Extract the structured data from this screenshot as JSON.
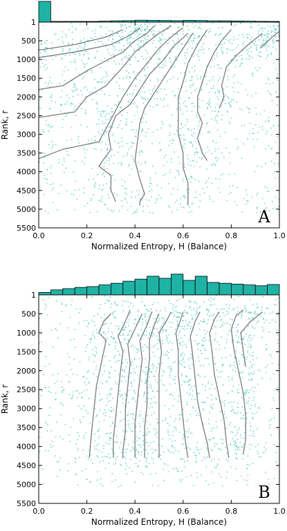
{
  "chart_data": [
    {
      "type": "scatter",
      "panel_label": "A",
      "xlabel": "Normalized Entropy, H (Balance)",
      "ylabel": "Rank, r",
      "xlim": [
        0.0,
        1.0
      ],
      "ylim": [
        5500,
        1
      ],
      "x_ticks": [
        "0.0",
        "0.2",
        "0.4",
        "0.6",
        "0.8",
        "1.0"
      ],
      "y_ticks": [
        "1",
        "500",
        "1000",
        "1500",
        "2000",
        "2500",
        "3000",
        "3500",
        "4000",
        "4500",
        "5000",
        "5500"
      ],
      "histogram_top": {
        "bin_width": 0.05,
        "counts": [
          650,
          10,
          8,
          12,
          20,
          30,
          40,
          45,
          60,
          55,
          50,
          45,
          55,
          50,
          40,
          40,
          35,
          30,
          25,
          20
        ]
      },
      "scatter_colour": "#3cc6b8",
      "curve_colour": "#7a7a7a",
      "contour_lines": [
        {
          "points": [
            [
              0.35,
              200
            ],
            [
              0.28,
              400
            ],
            [
              0.15,
              600
            ],
            [
              0.0,
              750
            ]
          ]
        },
        {
          "points": [
            [
              0.42,
              150
            ],
            [
              0.38,
              350
            ],
            [
              0.3,
              600
            ],
            [
              0.15,
              800
            ],
            [
              0.0,
              950
            ]
          ]
        },
        {
          "points": [
            [
              0.48,
              100
            ],
            [
              0.45,
              300
            ],
            [
              0.4,
              500
            ],
            [
              0.35,
              800
            ],
            [
              0.2,
              1300
            ],
            [
              0.1,
              1700
            ],
            [
              0.0,
              1800
            ]
          ]
        },
        {
          "points": [
            [
              0.55,
              100
            ],
            [
              0.5,
              300
            ],
            [
              0.45,
              550
            ],
            [
              0.4,
              800
            ],
            [
              0.35,
              1200
            ],
            [
              0.28,
              1700
            ],
            [
              0.2,
              2000
            ],
            [
              0.15,
              2400
            ],
            [
              0.0,
              2550
            ]
          ]
        },
        {
          "points": [
            [
              0.6,
              150
            ],
            [
              0.55,
              400
            ],
            [
              0.5,
              700
            ],
            [
              0.45,
              1100
            ],
            [
              0.4,
              1500
            ],
            [
              0.35,
              2000
            ],
            [
              0.3,
              2600
            ],
            [
              0.25,
              3200
            ],
            [
              0.1,
              3400
            ],
            [
              0.0,
              3650
            ]
          ]
        },
        {
          "points": [
            [
              0.62,
              300
            ],
            [
              0.56,
              650
            ],
            [
              0.52,
              1000
            ],
            [
              0.46,
              1400
            ],
            [
              0.42,
              1800
            ],
            [
              0.38,
              2200
            ],
            [
              0.32,
              2500
            ],
            [
              0.29,
              3000
            ],
            [
              0.3,
              3400
            ],
            [
              0.25,
              3850
            ],
            [
              0.3,
              4100
            ],
            [
              0.3,
              4500
            ],
            [
              0.32,
              4800
            ]
          ]
        },
        {
          "points": [
            [
              0.64,
              300
            ],
            [
              0.6,
              700
            ],
            [
              0.56,
              1100
            ],
            [
              0.52,
              1500
            ],
            [
              0.48,
              1900
            ],
            [
              0.44,
              2300
            ],
            [
              0.42,
              2700
            ],
            [
              0.41,
              3200
            ],
            [
              0.4,
              3700
            ],
            [
              0.42,
              4200
            ],
            [
              0.44,
              4600
            ],
            [
              0.42,
              4800
            ],
            [
              0.42,
              4900
            ]
          ]
        },
        {
          "points": [
            [
              0.7,
              200
            ],
            [
              0.66,
              600
            ],
            [
              0.62,
              1100
            ],
            [
              0.6,
              1600
            ],
            [
              0.58,
              2000
            ],
            [
              0.58,
              2500
            ],
            [
              0.58,
              3000
            ],
            [
              0.6,
              3500
            ],
            [
              0.6,
              3900
            ],
            [
              0.62,
              4300
            ],
            [
              0.62,
              4700
            ],
            [
              0.62,
              4900
            ]
          ]
        },
        {
          "points": [
            [
              0.8,
              200
            ],
            [
              0.76,
              500
            ],
            [
              0.73,
              800
            ],
            [
              0.7,
              1200
            ],
            [
              0.68,
              1600
            ],
            [
              0.66,
              2000
            ],
            [
              0.66,
              2400
            ],
            [
              0.68,
              2700
            ],
            [
              0.66,
              3100
            ],
            [
              0.68,
              3500
            ],
            [
              0.7,
              3700
            ]
          ]
        },
        {
          "points": [
            [
              0.93,
              300
            ],
            [
              0.88,
              550
            ],
            [
              0.82,
              900
            ],
            [
              0.78,
              1200
            ],
            [
              0.76,
              1700
            ],
            [
              0.77,
              2000
            ],
            [
              0.75,
              2300
            ]
          ]
        },
        {
          "points": [
            [
              1.0,
              250
            ],
            [
              0.97,
              400
            ],
            [
              0.92,
              700
            ]
          ]
        }
      ]
    },
    {
      "type": "scatter",
      "panel_label": "B",
      "xlabel": "Normalized Entropy, H (Balance)",
      "ylabel": "Rank, r",
      "xlim": [
        0.0,
        1.0
      ],
      "ylim": [
        5500,
        1
      ],
      "x_ticks": [
        "0.0",
        "0.2",
        "0.4",
        "0.6",
        "0.8",
        "1.0"
      ],
      "y_ticks": [
        "1",
        "500",
        "1000",
        "1500",
        "2000",
        "2500",
        "3000",
        "3500",
        "4000",
        "4500",
        "5000",
        "5500"
      ],
      "histogram_top": {
        "bin_width": 0.05,
        "counts": [
          6,
          12,
          15,
          18,
          20,
          24,
          28,
          33,
          38,
          45,
          40,
          50,
          35,
          45,
          30,
          28,
          26,
          24,
          22,
          25
        ]
      },
      "scatter_colour": "#3cc6b8",
      "curve_colour": "#7a7a7a",
      "contour_lines": [
        {
          "points": [
            [
              0.25,
              1000
            ],
            [
              0.27,
              700
            ],
            [
              0.3,
              500
            ],
            [
              0.28,
              1200
            ],
            [
              0.26,
              1800
            ],
            [
              0.24,
              2400
            ],
            [
              0.23,
              3000
            ],
            [
              0.22,
              3600
            ],
            [
              0.21,
              4300
            ]
          ]
        },
        {
          "points": [
            [
              0.33,
              1100
            ],
            [
              0.36,
              700
            ],
            [
              0.38,
              400
            ],
            [
              0.35,
              1500
            ],
            [
              0.34,
              2000
            ],
            [
              0.33,
              2600
            ],
            [
              0.32,
              3200
            ],
            [
              0.31,
              3800
            ],
            [
              0.31,
              4300
            ]
          ]
        },
        {
          "points": [
            [
              0.37,
              1300
            ],
            [
              0.4,
              900
            ],
            [
              0.43,
              500
            ],
            [
              0.38,
              1800
            ],
            [
              0.37,
              2400
            ],
            [
              0.36,
              3000
            ],
            [
              0.36,
              3600
            ],
            [
              0.35,
              4100
            ],
            [
              0.35,
              4300
            ]
          ]
        },
        {
          "points": [
            [
              0.42,
              1200
            ],
            [
              0.45,
              800
            ],
            [
              0.47,
              450
            ],
            [
              0.43,
              1700
            ],
            [
              0.42,
              2200
            ],
            [
              0.41,
              2800
            ],
            [
              0.4,
              3400
            ],
            [
              0.4,
              3900
            ],
            [
              0.4,
              4300
            ]
          ]
        },
        {
          "points": [
            [
              0.46,
              1200
            ],
            [
              0.48,
              800
            ],
            [
              0.5,
              500
            ],
            [
              0.46,
              1700
            ],
            [
              0.45,
              2300
            ],
            [
              0.45,
              2900
            ],
            [
              0.44,
              3500
            ],
            [
              0.44,
              3900
            ],
            [
              0.44,
              4300
            ]
          ]
        },
        {
          "points": [
            [
              0.5,
              1000
            ],
            [
              0.53,
              700
            ],
            [
              0.55,
              450
            ],
            [
              0.51,
              1500
            ],
            [
              0.5,
              2100
            ],
            [
              0.5,
              2700
            ],
            [
              0.5,
              3300
            ],
            [
              0.5,
              3900
            ],
            [
              0.5,
              4300
            ]
          ]
        },
        {
          "points": [
            [
              0.57,
              1000
            ],
            [
              0.59,
              650
            ],
            [
              0.6,
              450
            ],
            [
              0.58,
              1500
            ],
            [
              0.58,
              2100
            ],
            [
              0.59,
              2700
            ],
            [
              0.6,
              3300
            ],
            [
              0.61,
              3900
            ],
            [
              0.62,
              4300
            ]
          ]
        },
        {
          "points": [
            [
              0.63,
              1100
            ],
            [
              0.65,
              700
            ],
            [
              0.67,
              450
            ],
            [
              0.64,
              1600
            ],
            [
              0.65,
              2200
            ],
            [
              0.66,
              2800
            ],
            [
              0.68,
              3400
            ],
            [
              0.7,
              3900
            ],
            [
              0.71,
              4300
            ]
          ]
        },
        {
          "points": [
            [
              0.71,
              1000
            ],
            [
              0.73,
              650
            ],
            [
              0.75,
              450
            ],
            [
              0.72,
              1500
            ],
            [
              0.73,
              2100
            ],
            [
              0.75,
              2700
            ],
            [
              0.77,
              3300
            ],
            [
              0.78,
              3900
            ],
            [
              0.79,
              4300
            ]
          ]
        },
        {
          "points": [
            [
              0.8,
              900
            ],
            [
              0.82,
              550
            ],
            [
              0.85,
              400
            ],
            [
              0.81,
              1400
            ],
            [
              0.83,
              2000
            ],
            [
              0.85,
              2600
            ],
            [
              0.86,
              3200
            ],
            [
              0.86,
              3800
            ],
            [
              0.85,
              4200
            ]
          ]
        },
        {
          "points": [
            [
              0.84,
              1000
            ],
            [
              0.88,
              700
            ],
            [
              0.93,
              450
            ],
            [
              0.85,
              1500
            ],
            [
              0.86,
              1900
            ]
          ]
        }
      ]
    }
  ]
}
